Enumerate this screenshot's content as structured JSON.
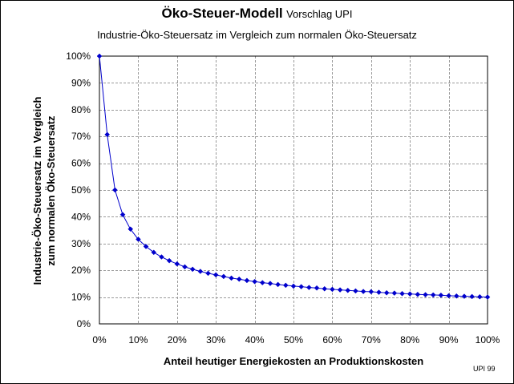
{
  "chart_data": {
    "type": "line",
    "title": "Öko-Steuer-Modell",
    "title_suffix": "Vorschlag UPI",
    "subtitle": "Industrie-Öko-Steuersatz  im Vergleich zum normalen Öko-Steuersatz",
    "xlabel": "Anteil heutiger Energiekosten an Produktionskosten",
    "ylabel_lines": [
      "Industrie-Öko-Steuersatz  im Vergleich",
      "zum normalen Öko-Steuersatz"
    ],
    "credit": "UPI 99",
    "xlim": [
      0,
      100
    ],
    "ylim": [
      0,
      100
    ],
    "x_ticks": [
      "0%",
      "10%",
      "20%",
      "30%",
      "40%",
      "50%",
      "60%",
      "70%",
      "80%",
      "90%",
      "100%"
    ],
    "y_ticks": [
      "0%",
      "10%",
      "20%",
      "30%",
      "40%",
      "50%",
      "60%",
      "70%",
      "80%",
      "90%",
      "100%"
    ],
    "grid": true,
    "legend": "none",
    "series": [
      {
        "color": "#0000cc",
        "marker": "diamond",
        "x": [
          0,
          2,
          4,
          6,
          8,
          10,
          12,
          14,
          16,
          18,
          20,
          22,
          24,
          26,
          28,
          30,
          32,
          34,
          36,
          38,
          40,
          42,
          44,
          46,
          48,
          50,
          52,
          54,
          56,
          58,
          60,
          62,
          64,
          66,
          68,
          70,
          72,
          74,
          76,
          78,
          80,
          82,
          84,
          86,
          88,
          90,
          92,
          94,
          96,
          98,
          100
        ],
        "values": [
          100,
          70.7,
          50,
          40.8,
          35.4,
          31.6,
          28.9,
          26.7,
          25.0,
          23.6,
          22.4,
          21.3,
          20.4,
          19.6,
          18.9,
          18.3,
          17.7,
          17.1,
          16.7,
          16.2,
          15.8,
          15.4,
          15.1,
          14.7,
          14.4,
          14.1,
          13.9,
          13.6,
          13.4,
          13.1,
          12.9,
          12.7,
          12.5,
          12.3,
          12.1,
          12.0,
          11.8,
          11.6,
          11.5,
          11.3,
          11.2,
          11.0,
          10.9,
          10.8,
          10.7,
          10.5,
          10.4,
          10.3,
          10.2,
          10.1,
          10.0
        ]
      }
    ]
  }
}
